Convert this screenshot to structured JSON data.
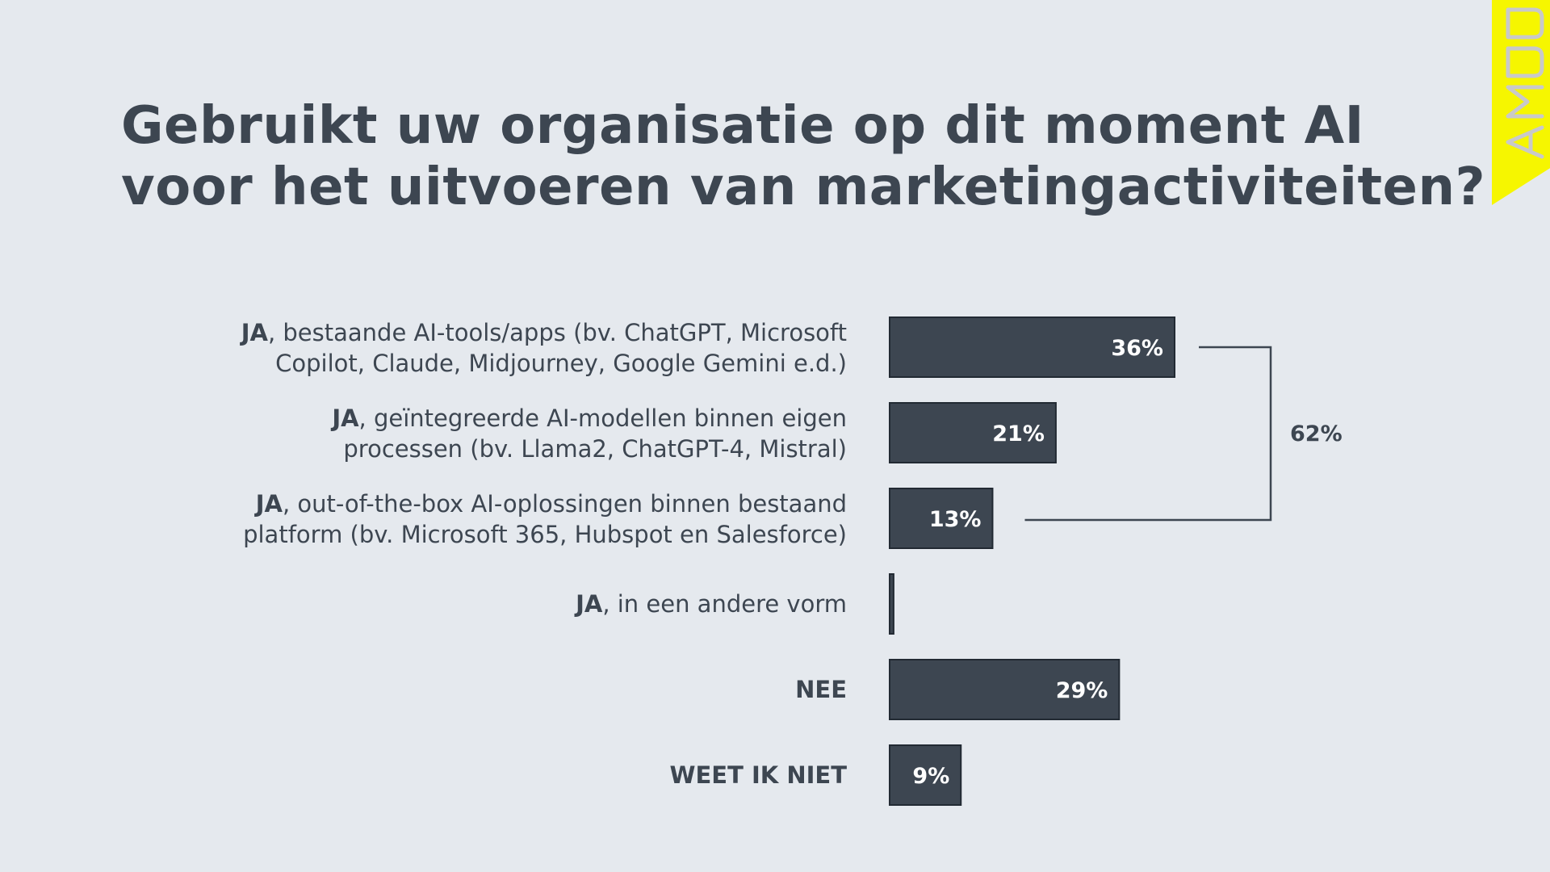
{
  "title": {
    "line1": "Gebruikt uw organisatie op dit moment AI",
    "line2": "voor het uitvoeren van marketingactiviteiten?"
  },
  "logo": {
    "text": "DDMA",
    "background": "#f6f600"
  },
  "colors": {
    "background": "#e5e9ee",
    "bar": "#3d4651",
    "bar_stroke": "#222a33",
    "text": "#3d4651",
    "value_text": "#ffffff"
  },
  "chart_data": {
    "type": "bar",
    "orientation": "horizontal",
    "categories": [
      {
        "strong": "JA",
        "rest": ", bestaande AI-tools/apps (bv. ChatGPT, Microsoft",
        "line2": "Copilot, Claude, Midjourney, Google Gemini e.d.)"
      },
      {
        "strong": "JA",
        "rest": ", geïntegreerde AI-modellen binnen eigen",
        "line2": "processen (bv. Llama2, ChatGPT-4, Mistral)"
      },
      {
        "strong": "JA",
        "rest": ", out-of-the-box AI-oplossingen binnen bestaand",
        "line2": "platform (bv. Microsoft 365, Hubspot en Salesforce)"
      },
      {
        "strong": "JA",
        "rest": ", in een andere vorm",
        "line2": ""
      },
      {
        "strong": "NEE",
        "rest": "",
        "line2": ""
      },
      {
        "strong": "WEET IK NIET",
        "rest": "",
        "line2": ""
      }
    ],
    "values": [
      36,
      21,
      13,
      0.5,
      29,
      9
    ],
    "value_labels": [
      "36%",
      "21%",
      "13%",
      "",
      "29%",
      "9%"
    ],
    "unit": "%",
    "xlim": [
      0,
      100
    ],
    "grid": false,
    "group_bracket": {
      "from_index": 0,
      "to_index": 2,
      "label": "62%"
    }
  }
}
